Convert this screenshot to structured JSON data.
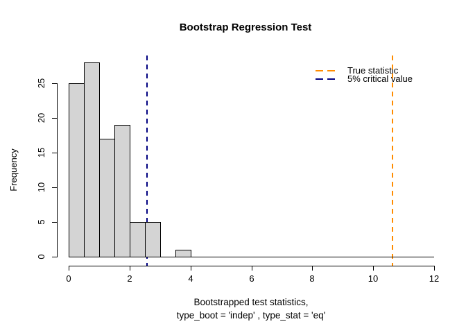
{
  "title": "Bootstrap Regression Test",
  "chart_data": {
    "type": "bar",
    "subtype": "histogram",
    "title": "Bootstrap Regression Test",
    "xlabel_line1": "Bootstrapped test statistics,",
    "xlabel_line2": "type_boot = 'indep' , type_stat = 'eq'",
    "ylabel": "Frequency",
    "bin_edges": [
      0,
      0.5,
      1,
      1.5,
      2,
      2.5,
      3,
      3.5,
      4
    ],
    "counts": [
      25,
      28,
      17,
      19,
      5,
      5,
      0,
      1
    ],
    "x_ticks": [
      0,
      2,
      4,
      6,
      8,
      10,
      12
    ],
    "y_ticks": [
      0,
      5,
      10,
      15,
      20,
      25
    ],
    "xlim": [
      0,
      12
    ],
    "ylim": [
      0,
      28
    ],
    "grid": false,
    "bar_fill": "#d4d4d4",
    "bar_border": "#000000",
    "vlines": [
      {
        "name": "true-statistic-line",
        "x": 10.6,
        "color": "#ff8c00",
        "style": "dashed"
      },
      {
        "name": "critical-value-line",
        "x": 2.55,
        "color": "#000080",
        "style": "dashed"
      }
    ],
    "legend_position": "topright",
    "legend": [
      {
        "label": "True statistic",
        "color": "#ff8c00"
      },
      {
        "label": "5% critical value",
        "color": "#000080"
      }
    ]
  }
}
